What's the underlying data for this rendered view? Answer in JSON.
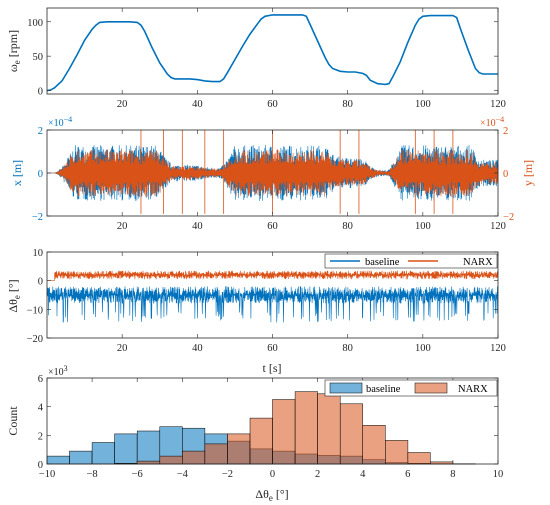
{
  "chart_data": [
    {
      "type": "line",
      "panel": "speed",
      "ylabel": "ω_e [rpm]",
      "xlim": [
        0,
        120
      ],
      "ylim": [
        -5,
        120
      ],
      "xticks": [
        20,
        40,
        60,
        80,
        100,
        120
      ],
      "yticks": [
        0,
        50,
        100
      ],
      "series": [
        {
          "color": "#0072BD",
          "x": [
            0,
            1,
            2,
            4,
            6,
            8,
            10,
            12,
            13,
            14,
            16,
            18,
            20,
            22,
            24,
            25,
            26,
            28,
            30,
            32,
            33,
            34,
            36,
            38,
            40,
            42,
            44,
            46,
            47,
            48,
            50,
            52,
            54,
            56,
            57,
            58,
            60,
            62,
            64,
            66,
            68,
            69,
            70,
            72,
            74,
            75,
            76,
            78,
            80,
            82,
            84,
            85,
            86,
            88,
            90,
            91,
            92,
            94,
            96,
            98,
            99,
            100,
            102,
            104,
            106,
            108,
            109,
            110,
            112,
            114,
            115,
            116,
            118,
            120
          ],
          "y": [
            0,
            1,
            4,
            14,
            32,
            52,
            73,
            89,
            95,
            99,
            100,
            100,
            100,
            100,
            99,
            95,
            86,
            62,
            40,
            24,
            19,
            17,
            17,
            17,
            16,
            14,
            13,
            13,
            17,
            26,
            45,
            64,
            82,
            97,
            104,
            108,
            110,
            110,
            110,
            110,
            110,
            108,
            96,
            72,
            48,
            38,
            32,
            28,
            27,
            27,
            25,
            22,
            15,
            10,
            9,
            10,
            20,
            42,
            70,
            95,
            104,
            108,
            109,
            109,
            109,
            109,
            106,
            90,
            60,
            32,
            26,
            24,
            24,
            24
          ]
        }
      ]
    },
    {
      "type": "line",
      "panel": "displacement",
      "ylabel": "x [m]",
      "ylabel_right": "y [m]",
      "y_exponent": "×10",
      "y_exponent_power": "−4",
      "xlim": [
        0,
        120
      ],
      "ylim": [
        -2,
        2
      ],
      "xticks": [
        20,
        40,
        60,
        80,
        100,
        120
      ],
      "yticks": [
        -2,
        0,
        2
      ],
      "series": [
        {
          "name": "x",
          "color": "#0072BD",
          "amplitude": 1.3
        },
        {
          "name": "y",
          "color": "#D95319",
          "amplitude": 1.1
        }
      ]
    },
    {
      "type": "line",
      "panel": "angle-error",
      "ylabel": "Δθ_e [°]",
      "xlabel": "t [s]",
      "xlim": [
        0,
        120
      ],
      "ylim": [
        -20,
        10
      ],
      "xticks": [
        20,
        40,
        60,
        80,
        100,
        120
      ],
      "yticks": [
        -20,
        -10,
        0,
        10
      ],
      "legend": "top-right",
      "series": [
        {
          "name": "baseline",
          "color": "#0072BD",
          "mean": -5,
          "spread": 6
        },
        {
          "name": "NARX",
          "color": "#D95319",
          "mean": 2,
          "spread": 3
        }
      ]
    },
    {
      "type": "bar",
      "panel": "histogram",
      "ylabel": "Count",
      "xlabel": "Δθ_e [°]",
      "y_exponent": "×10",
      "y_exponent_power": "3",
      "xlim": [
        -10,
        10
      ],
      "ylim": [
        0,
        6
      ],
      "xticks": [
        -10,
        -8,
        -6,
        -4,
        -2,
        0,
        2,
        4,
        6,
        8,
        10
      ],
      "yticks": [
        0,
        2,
        4,
        6
      ],
      "legend": "top-right",
      "bin_edges": [
        -10,
        -9,
        -8,
        -7,
        -6,
        -5,
        -4,
        -3,
        -2,
        -1,
        0,
        1,
        2,
        3,
        4,
        5,
        6,
        7,
        8,
        9,
        10
      ],
      "series": [
        {
          "name": "baseline",
          "color": "#0072BD",
          "values": [
            0.55,
            0.9,
            1.5,
            2.1,
            2.3,
            2.6,
            2.5,
            2.1,
            1.6,
            1.05,
            0.9,
            0.7,
            0.6,
            0.55,
            0.3,
            0.1,
            0.05,
            0.02,
            0.01,
            0.0
          ]
        },
        {
          "name": "NARX",
          "color": "#D95319",
          "values": [
            0.0,
            0.0,
            0.0,
            0.05,
            0.2,
            0.55,
            0.9,
            1.4,
            2.1,
            3.2,
            4.5,
            5.05,
            4.9,
            4.2,
            2.7,
            1.65,
            0.8,
            0.15,
            0.02,
            0.0
          ]
        }
      ]
    }
  ]
}
